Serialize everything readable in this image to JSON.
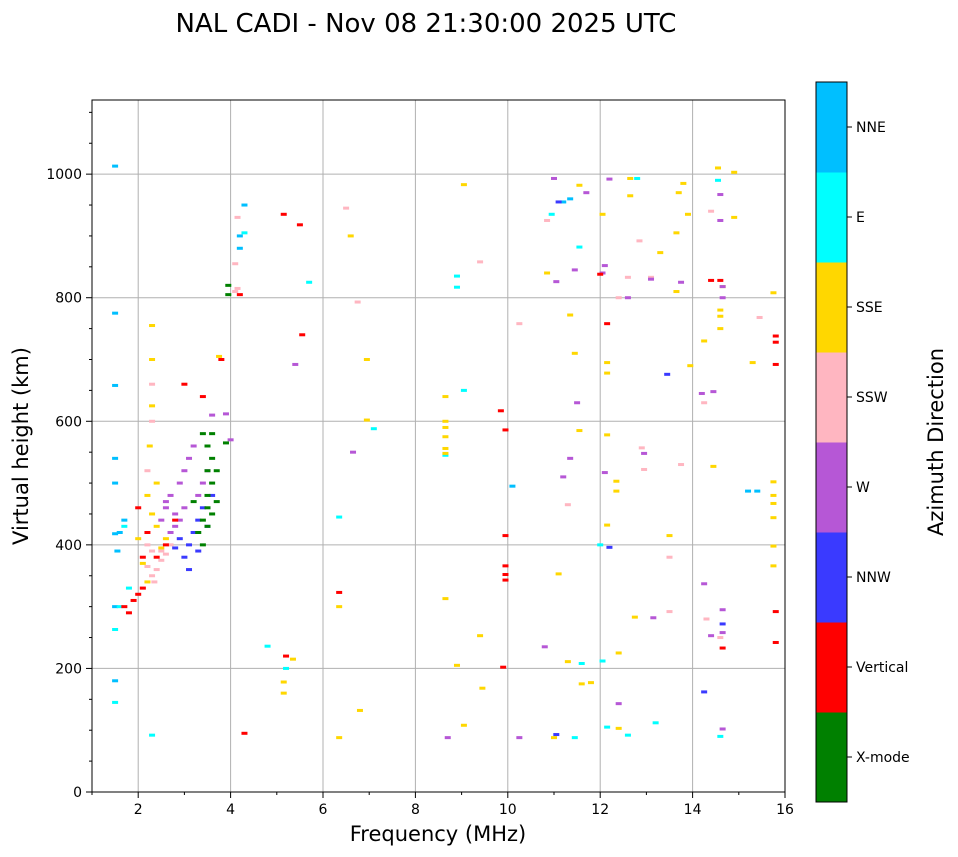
{
  "chart_data": {
    "type": "scatter",
    "title": "NAL CADI - Nov 08 21:30:00 2025 UTC",
    "xlabel": "Frequency (MHz)",
    "ylabel": "Virtual height (km)",
    "xlim": [
      1,
      16
    ],
    "ylim": [
      0,
      1120
    ],
    "xticks": [
      2,
      4,
      6,
      8,
      10,
      12,
      14,
      16
    ],
    "yticks": [
      0,
      200,
      400,
      600,
      800,
      1000
    ],
    "grid": true,
    "colorbar": {
      "label": "Azimuth Direction",
      "categories": [
        {
          "name": "X-mode",
          "color": "#008000"
        },
        {
          "name": "Vertical",
          "color": "#ff0000"
        },
        {
          "name": "NNW",
          "color": "#3a3aff"
        },
        {
          "name": "W",
          "color": "#b657d6"
        },
        {
          "name": "SSW",
          "color": "#ffb6c1"
        },
        {
          "name": "SSE",
          "color": "#ffd700"
        },
        {
          "name": "E",
          "color": "#00ffff"
        },
        {
          "name": "NNE",
          "color": "#00bfff"
        }
      ]
    },
    "series": [
      {
        "name": "NNE",
        "points": [
          [
            1.5,
            1013
          ],
          [
            1.5,
            775
          ],
          [
            1.5,
            658
          ],
          [
            1.5,
            540
          ],
          [
            1.5,
            500
          ],
          [
            1.5,
            418
          ],
          [
            1.5,
            300
          ],
          [
            1.5,
            180
          ],
          [
            1.55,
            390
          ],
          [
            4.2,
            900
          ],
          [
            4.3,
            950
          ],
          [
            4.2,
            880
          ],
          [
            10.1,
            495
          ],
          [
            11.2,
            955
          ],
          [
            11.35,
            960
          ],
          [
            15.2,
            487
          ],
          [
            15.4,
            487
          ],
          [
            1.6,
            420
          ],
          [
            1.7,
            440
          ]
        ]
      },
      {
        "name": "E",
        "points": [
          [
            1.5,
            263
          ],
          [
            1.5,
            145
          ],
          [
            2.3,
            92
          ],
          [
            4.3,
            905
          ],
          [
            4.8,
            236
          ],
          [
            5.2,
            200
          ],
          [
            5.7,
            825
          ],
          [
            6.35,
            445
          ],
          [
            7.1,
            588
          ],
          [
            8.9,
            835
          ],
          [
            8.9,
            817
          ],
          [
            8.65,
            545
          ],
          [
            9.05,
            650
          ],
          [
            10.95,
            935
          ],
          [
            11.45,
            88
          ],
          [
            11.55,
            882
          ],
          [
            11.6,
            208
          ],
          [
            12.0,
            400
          ],
          [
            12.05,
            212
          ],
          [
            12.15,
            105
          ],
          [
            12.6,
            92
          ],
          [
            12.8,
            993
          ],
          [
            13.2,
            112
          ],
          [
            14.55,
            990
          ],
          [
            14.6,
            90
          ],
          [
            1.6,
            300
          ],
          [
            1.8,
            330
          ],
          [
            1.7,
            430
          ]
        ]
      },
      {
        "name": "SSE",
        "points": [
          [
            2.3,
            755
          ],
          [
            2.3,
            700
          ],
          [
            2.3,
            625
          ],
          [
            2.25,
            560
          ],
          [
            2.2,
            480
          ],
          [
            2.4,
            430
          ],
          [
            2.1,
            370
          ],
          [
            2.2,
            340
          ],
          [
            3.75,
            705
          ],
          [
            5.35,
            215
          ],
          [
            5.15,
            178
          ],
          [
            5.15,
            160
          ],
          [
            6.35,
            300
          ],
          [
            6.35,
            88
          ],
          [
            6.6,
            900
          ],
          [
            6.8,
            132
          ],
          [
            6.95,
            700
          ],
          [
            6.95,
            602
          ],
          [
            8.65,
            640
          ],
          [
            8.65,
            600
          ],
          [
            8.65,
            590
          ],
          [
            8.65,
            575
          ],
          [
            8.65,
            556
          ],
          [
            8.65,
            548
          ],
          [
            8.65,
            313
          ],
          [
            8.9,
            205
          ],
          [
            9.05,
            983
          ],
          [
            9.05,
            108
          ],
          [
            9.4,
            253
          ],
          [
            9.45,
            168
          ],
          [
            10.85,
            840
          ],
          [
            11.0,
            88
          ],
          [
            11.1,
            353
          ],
          [
            11.3,
            211
          ],
          [
            11.35,
            772
          ],
          [
            11.45,
            710
          ],
          [
            11.55,
            585
          ],
          [
            11.55,
            982
          ],
          [
            11.6,
            175
          ],
          [
            11.8,
            177
          ],
          [
            12.05,
            935
          ],
          [
            12.15,
            695
          ],
          [
            12.15,
            678
          ],
          [
            12.15,
            578
          ],
          [
            12.15,
            432
          ],
          [
            12.35,
            503
          ],
          [
            12.35,
            487
          ],
          [
            12.4,
            225
          ],
          [
            12.4,
            103
          ],
          [
            12.65,
            965
          ],
          [
            12.65,
            993
          ],
          [
            12.75,
            283
          ],
          [
            13.3,
            873
          ],
          [
            13.5,
            415
          ],
          [
            13.65,
            905
          ],
          [
            13.65,
            810
          ],
          [
            13.7,
            970
          ],
          [
            13.8,
            985
          ],
          [
            13.9,
            935
          ],
          [
            13.95,
            690
          ],
          [
            14.25,
            730
          ],
          [
            14.45,
            527
          ],
          [
            14.55,
            1010
          ],
          [
            14.6,
            780
          ],
          [
            14.6,
            770
          ],
          [
            14.6,
            750
          ],
          [
            14.65,
            818
          ],
          [
            14.9,
            1003
          ],
          [
            14.9,
            930
          ],
          [
            15.3,
            695
          ],
          [
            15.75,
            808
          ],
          [
            15.75,
            502
          ],
          [
            15.75,
            480
          ],
          [
            15.75,
            467
          ],
          [
            15.75,
            444
          ],
          [
            15.75,
            398
          ],
          [
            15.75,
            366
          ],
          [
            2.0,
            410
          ],
          [
            2.5,
            395
          ],
          [
            2.6,
            410
          ],
          [
            2.3,
            450
          ],
          [
            2.4,
            500
          ]
        ]
      },
      {
        "name": "SSW",
        "points": [
          [
            2.3,
            660
          ],
          [
            2.3,
            600
          ],
          [
            2.2,
            520
          ],
          [
            4.1,
            855
          ],
          [
            4.15,
            930
          ],
          [
            4.1,
            810
          ],
          [
            4.15,
            815
          ],
          [
            6.5,
            945
          ],
          [
            6.75,
            793
          ],
          [
            9.4,
            858
          ],
          [
            10.25,
            758
          ],
          [
            10.85,
            925
          ],
          [
            11.3,
            465
          ],
          [
            12.4,
            800
          ],
          [
            12.6,
            833
          ],
          [
            12.85,
            892
          ],
          [
            12.9,
            557
          ],
          [
            12.95,
            522
          ],
          [
            13.1,
            833
          ],
          [
            13.5,
            380
          ],
          [
            13.5,
            292
          ],
          [
            13.75,
            530
          ],
          [
            14.25,
            630
          ],
          [
            14.3,
            280
          ],
          [
            14.4,
            940
          ],
          [
            14.6,
            250
          ],
          [
            15.45,
            768
          ],
          [
            2.1,
            330
          ],
          [
            2.3,
            350
          ],
          [
            2.4,
            360
          ],
          [
            2.5,
            375
          ],
          [
            2.6,
            385
          ],
          [
            2.2,
            365
          ],
          [
            2.35,
            340
          ],
          [
            2.5,
            390
          ],
          [
            2.3,
            390
          ],
          [
            2.7,
            400
          ],
          [
            2.2,
            400
          ]
        ]
      },
      {
        "name": "W",
        "points": [
          [
            2.6,
            470
          ],
          [
            2.7,
            480
          ],
          [
            2.8,
            450
          ],
          [
            2.9,
            500
          ],
          [
            3.0,
            520
          ],
          [
            3.1,
            540
          ],
          [
            3.2,
            560
          ],
          [
            2.7,
            420
          ],
          [
            2.8,
            430
          ],
          [
            2.9,
            440
          ],
          [
            3.0,
            460
          ],
          [
            3.3,
            480
          ],
          [
            3.4,
            500
          ],
          [
            3.5,
            520
          ],
          [
            2.5,
            440
          ],
          [
            2.6,
            460
          ],
          [
            3.6,
            610
          ],
          [
            3.9,
            612
          ],
          [
            4.0,
            570
          ],
          [
            5.4,
            692
          ],
          [
            6.65,
            550
          ],
          [
            8.7,
            88
          ],
          [
            10.25,
            88
          ],
          [
            10.8,
            235
          ],
          [
            11.0,
            993
          ],
          [
            11.05,
            826
          ],
          [
            11.2,
            510
          ],
          [
            11.35,
            540
          ],
          [
            11.45,
            845
          ],
          [
            11.5,
            630
          ],
          [
            11.7,
            970
          ],
          [
            12.05,
            840
          ],
          [
            12.1,
            852
          ],
          [
            12.1,
            517
          ],
          [
            12.2,
            992
          ],
          [
            12.4,
            143
          ],
          [
            12.6,
            800
          ],
          [
            12.95,
            548
          ],
          [
            13.1,
            830
          ],
          [
            13.15,
            282
          ],
          [
            13.75,
            825
          ],
          [
            14.2,
            645
          ],
          [
            14.25,
            337
          ],
          [
            14.4,
            253
          ],
          [
            14.45,
            648
          ],
          [
            14.6,
            967
          ],
          [
            14.6,
            925
          ],
          [
            14.65,
            818
          ],
          [
            14.65,
            800
          ],
          [
            14.65,
            295
          ],
          [
            14.65,
            258
          ],
          [
            14.65,
            102
          ]
        ]
      },
      {
        "name": "NNW",
        "points": [
          [
            3.1,
            400
          ],
          [
            3.2,
            420
          ],
          [
            3.3,
            440
          ],
          [
            3.0,
            380
          ],
          [
            3.4,
            460
          ],
          [
            3.6,
            480
          ],
          [
            3.1,
            360
          ],
          [
            3.3,
            390
          ],
          [
            2.9,
            410
          ],
          [
            11.05,
            93
          ],
          [
            11.1,
            955
          ],
          [
            12.2,
            396
          ],
          [
            13.45,
            676
          ],
          [
            14.25,
            162
          ],
          [
            14.65,
            272
          ],
          [
            2.8,
            395
          ],
          [
            3.5,
            430
          ]
        ]
      },
      {
        "name": "Vertical",
        "points": [
          [
            1.7,
            300
          ],
          [
            1.8,
            290
          ],
          [
            1.9,
            310
          ],
          [
            2.0,
            320
          ],
          [
            2.1,
            330
          ],
          [
            2.2,
            420
          ],
          [
            2.0,
            460
          ],
          [
            2.4,
            380
          ],
          [
            2.6,
            400
          ],
          [
            2.8,
            440
          ],
          [
            3.0,
            660
          ],
          [
            3.4,
            640
          ],
          [
            4.2,
            805
          ],
          [
            4.3,
            95
          ],
          [
            5.15,
            935
          ],
          [
            5.2,
            220
          ],
          [
            5.5,
            918
          ],
          [
            5.55,
            740
          ],
          [
            6.35,
            323
          ],
          [
            9.85,
            617
          ],
          [
            9.9,
            202
          ],
          [
            9.95,
            415
          ],
          [
            9.95,
            366
          ],
          [
            9.95,
            352
          ],
          [
            9.95,
            343
          ],
          [
            9.95,
            586
          ],
          [
            12.0,
            838
          ],
          [
            12.15,
            758
          ],
          [
            14.4,
            828
          ],
          [
            14.6,
            828
          ],
          [
            14.65,
            233
          ],
          [
            15.8,
            738
          ],
          [
            15.8,
            728
          ],
          [
            15.8,
            692
          ],
          [
            15.8,
            292
          ],
          [
            15.8,
            242
          ],
          [
            3.8,
            700
          ],
          [
            2.1,
            380
          ]
        ]
      },
      {
        "name": "X-mode",
        "points": [
          [
            3.5,
            460
          ],
          [
            3.6,
            450
          ],
          [
            3.4,
            440
          ],
          [
            3.7,
            470
          ],
          [
            3.5,
            480
          ],
          [
            3.6,
            500
          ],
          [
            3.3,
            420
          ],
          [
            3.4,
            400
          ],
          [
            3.5,
            520
          ],
          [
            3.6,
            540
          ],
          [
            3.5,
            560
          ],
          [
            3.7,
            520
          ],
          [
            3.4,
            580
          ],
          [
            3.6,
            580
          ],
          [
            3.95,
            820
          ],
          [
            3.95,
            805
          ],
          [
            3.9,
            565
          ],
          [
            3.5,
            430
          ],
          [
            3.2,
            470
          ]
        ]
      }
    ]
  }
}
